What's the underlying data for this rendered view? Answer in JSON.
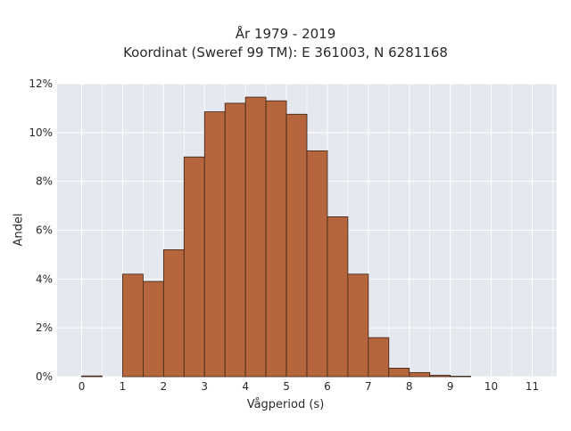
{
  "chart_data": {
    "type": "bar",
    "title": "År 1979 - 2019",
    "subtitle": "Koordinat (Sweref 99 TM): E 361003, N 6281168",
    "xlabel": "Vågperiod (s)",
    "ylabel": "Andel",
    "bin_width": 0.5,
    "bin_starts": [
      0,
      0.5,
      1,
      1.5,
      2,
      2.5,
      3,
      3.5,
      4,
      4.5,
      5,
      5.5,
      6,
      6.5,
      7,
      7.5,
      8,
      8.5,
      9,
      9.5,
      10,
      10.5
    ],
    "values": [
      0.03,
      0,
      4.2,
      3.9,
      5.2,
      9.0,
      10.85,
      11.2,
      11.45,
      11.3,
      10.75,
      9.25,
      6.55,
      4.2,
      1.6,
      0.35,
      0.17,
      0.06,
      0.02,
      0,
      0,
      0
    ],
    "value_unit": "%",
    "xticks": [
      "0",
      "1",
      "2",
      "3",
      "4",
      "5",
      "6",
      "7",
      "8",
      "9",
      "10",
      "11"
    ],
    "yticks": [
      "0%",
      "2%",
      "4%",
      "6%",
      "8%",
      "10%",
      "12%"
    ],
    "xlim": [
      -0.6,
      11.6
    ],
    "ylim": [
      0,
      12
    ],
    "grid": true,
    "bar_color": "#b5663d",
    "bar_edge_color": "#3a2418",
    "background_color": "#e5e8ee",
    "grid_color": "#ffffff"
  }
}
